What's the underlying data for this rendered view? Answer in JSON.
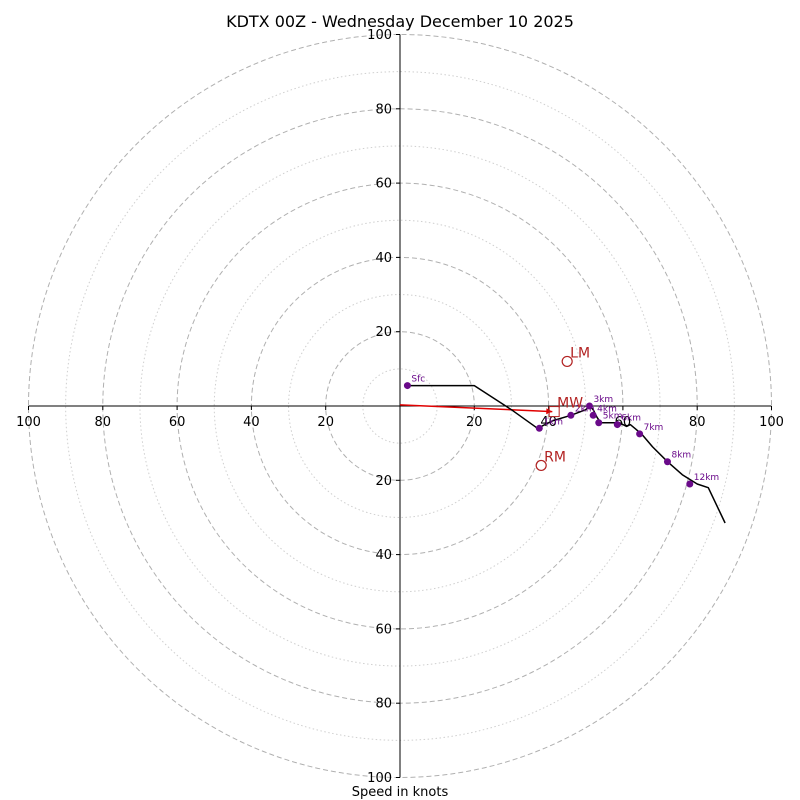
{
  "chart_data": {
    "type": "hodograph",
    "title": "KDTX 00Z - Wednesday December 10 2025",
    "xlabel": "Speed in knots",
    "range": [
      -100,
      100
    ],
    "major_rings": [
      20,
      40,
      60,
      80,
      100
    ],
    "minor_rings": [
      10,
      30,
      50,
      70,
      90
    ],
    "ticks": {
      "left": [
        "100",
        "80",
        "60",
        "40",
        "20"
      ],
      "right": [
        "20",
        "40",
        "60",
        "80",
        "100"
      ],
      "top": [
        "20",
        "40",
        "60",
        "80",
        "100"
      ],
      "bottom": [
        "20",
        "40",
        "60",
        "80",
        "100"
      ]
    },
    "trace": [
      [
        2,
        5.5
      ],
      [
        20,
        5.5
      ],
      [
        30,
        -1
      ],
      [
        37,
        -6
      ],
      [
        41,
        -4
      ],
      [
        46,
        -2.5
      ],
      [
        50,
        -1
      ],
      [
        51,
        0
      ],
      [
        52,
        -1
      ],
      [
        53,
        -3
      ],
      [
        54,
        -4.5
      ],
      [
        59,
        -4.5
      ],
      [
        61,
        -5.5
      ],
      [
        62,
        -5
      ],
      [
        65,
        -7.5
      ],
      [
        68,
        -11
      ],
      [
        72,
        -15
      ],
      [
        76,
        -18.5
      ],
      [
        80,
        -21
      ],
      [
        83,
        -22
      ],
      [
        87.5,
        -31.5
      ]
    ],
    "height_points": [
      {
        "label": "Sfc",
        "u": 2,
        "v": 5.5
      },
      {
        "label": "1km",
        "u": 37.5,
        "v": -6
      },
      {
        "label": "2km",
        "u": 46,
        "v": -2.5
      },
      {
        "label": "3km",
        "u": 51,
        "v": 0
      },
      {
        "label": "4km",
        "u": 52,
        "v": -2.5
      },
      {
        "label": "5km",
        "u": 53.5,
        "v": -4.5
      },
      {
        "label": "6km",
        "u": 58.5,
        "v": -5
      },
      {
        "label": "7km",
        "u": 64.5,
        "v": -7.5
      },
      {
        "label": "8km",
        "u": 72,
        "v": -15
      },
      {
        "label": "12km",
        "u": 78,
        "v": -21
      }
    ],
    "storm_motion": [
      {
        "label": "LM",
        "u": 45,
        "v": 12
      },
      {
        "label": "RM",
        "u": 38,
        "v": -16
      },
      {
        "label": "MW",
        "u": 41.5,
        "v": -1.5
      }
    ],
    "shear_vector": {
      "from": [
        0,
        0.3
      ],
      "to": [
        41,
        -1.5
      ]
    },
    "colors": {
      "trace": "#000000",
      "points": "#6a0a8a",
      "motion": "#b22222",
      "shear": "#e00000",
      "major_grid": "#b0b0b0",
      "minor_grid": "#cfcfcf"
    }
  }
}
